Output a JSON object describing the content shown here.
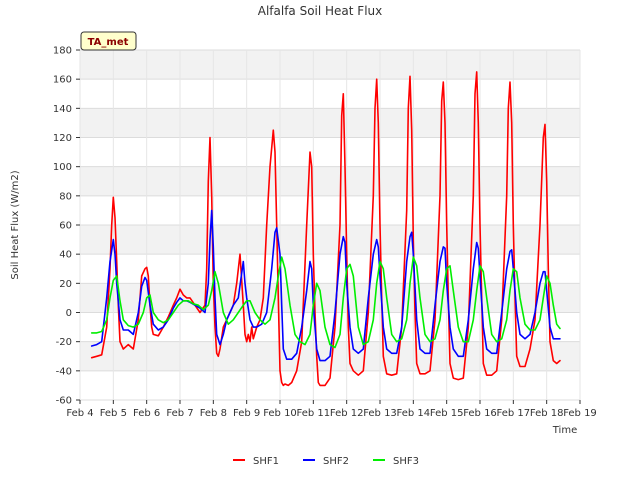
{
  "chart_data": {
    "type": "line",
    "title": "Alfalfa Soil Heat Flux",
    "xlabel": "Time",
    "ylabel": "Soil Heat Flux (W/m2)",
    "site_label": "TA_met",
    "xlim": [
      4,
      19
    ],
    "ylim": [
      -60,
      180
    ],
    "x_ticks": [
      4,
      5,
      6,
      7,
      8,
      9,
      10,
      11,
      12,
      13,
      14,
      15,
      16,
      17,
      18,
      19
    ],
    "x_tick_labels": [
      "Feb 4",
      "Feb 5",
      "Feb 6",
      "Feb 7",
      "Feb 8",
      "Feb 9",
      "Feb 10",
      "Feb 11",
      "Feb 12",
      "Feb 13",
      "Feb 14",
      "Feb 15",
      "Feb 16",
      "Feb 17",
      "Feb 18",
      "Feb 19"
    ],
    "y_ticks": [
      -60,
      -40,
      -20,
      0,
      20,
      40,
      60,
      80,
      100,
      120,
      140,
      160,
      180
    ],
    "y_tick_labels": [
      "-60",
      "-40",
      "-20",
      "0",
      "20",
      "40",
      "60",
      "80",
      "100",
      "120",
      "140",
      "160",
      "180"
    ],
    "grid": true,
    "legend_position": "bottom",
    "series": [
      {
        "name": "SHF1",
        "color": "#ff0000",
        "x": [
          4.35,
          4.5,
          4.65,
          4.8,
          4.9,
          4.95,
          5.0,
          5.05,
          5.1,
          5.15,
          5.2,
          5.3,
          5.45,
          5.6,
          5.75,
          5.85,
          5.95,
          6.0,
          6.05,
          6.1,
          6.15,
          6.2,
          6.35,
          6.5,
          6.65,
          6.8,
          6.9,
          7.0,
          7.1,
          7.2,
          7.3,
          7.45,
          7.6,
          7.75,
          7.8,
          7.85,
          7.9,
          7.95,
          8.0,
          8.05,
          8.1,
          8.15,
          8.2,
          8.3,
          8.4,
          8.5,
          8.6,
          8.7,
          8.8,
          8.9,
          8.95,
          9.0,
          9.05,
          9.1,
          9.15,
          9.2,
          9.3,
          9.4,
          9.5,
          9.6,
          9.7,
          9.8,
          9.85,
          9.9,
          9.95,
          10.0,
          10.05,
          10.1,
          10.15,
          10.25,
          10.35,
          10.5,
          10.65,
          10.8,
          10.9,
          10.95,
          11.0,
          11.05,
          11.1,
          11.15,
          11.2,
          11.35,
          11.5,
          11.65,
          11.8,
          11.85,
          11.9,
          11.95,
          12.0,
          12.05,
          12.1,
          12.2,
          12.35,
          12.5,
          12.65,
          12.8,
          12.85,
          12.9,
          12.95,
          13.0,
          13.05,
          13.1,
          13.2,
          13.35,
          13.5,
          13.65,
          13.8,
          13.85,
          13.9,
          13.95,
          14.0,
          14.05,
          14.1,
          14.2,
          14.35,
          14.5,
          14.65,
          14.8,
          14.85,
          14.9,
          14.95,
          15.0,
          15.05,
          15.1,
          15.2,
          15.35,
          15.5,
          15.65,
          15.8,
          15.85,
          15.9,
          15.95,
          16.0,
          16.05,
          16.1,
          16.2,
          16.35,
          16.5,
          16.65,
          16.8,
          16.85,
          16.9,
          16.95,
          17.0,
          17.05,
          17.1,
          17.2,
          17.35,
          17.5,
          17.65,
          17.8,
          17.9,
          17.95,
          18.0,
          18.05,
          18.1,
          18.2,
          18.3,
          18.4
        ],
        "y": [
          -31,
          -30,
          -29,
          -10,
          30,
          60,
          79,
          65,
          35,
          5,
          -20,
          -25,
          -22,
          -25,
          -5,
          25,
          30,
          31,
          25,
          5,
          -10,
          -15,
          -16,
          -10,
          -3,
          5,
          10,
          16,
          12,
          10,
          10,
          5,
          0,
          5,
          30,
          90,
          120,
          80,
          20,
          -10,
          -28,
          -30,
          -25,
          -10,
          -5,
          0,
          5,
          20,
          40,
          5,
          -15,
          -20,
          -15,
          -20,
          -10,
          -18,
          -10,
          -5,
          10,
          60,
          100,
          125,
          110,
          60,
          10,
          -40,
          -48,
          -50,
          -49,
          -50,
          -48,
          -40,
          -20,
          60,
          110,
          100,
          40,
          0,
          -30,
          -48,
          -50,
          -50,
          -45,
          -10,
          60,
          135,
          150,
          100,
          40,
          -10,
          -35,
          -40,
          -43,
          -40,
          0,
          80,
          140,
          160,
          130,
          60,
          10,
          -30,
          -42,
          -43,
          -42,
          -10,
          70,
          140,
          162,
          125,
          50,
          0,
          -35,
          -42,
          -42,
          -40,
          -5,
          80,
          145,
          158,
          130,
          60,
          10,
          -35,
          -45,
          -46,
          -45,
          -10,
          80,
          150,
          165,
          130,
          60,
          10,
          -35,
          -43,
          -43,
          -40,
          -5,
          80,
          140,
          158,
          130,
          60,
          10,
          -30,
          -37,
          -37,
          -25,
          -5,
          60,
          120,
          129,
          90,
          30,
          -20,
          -33,
          -35,
          -33
        ]
      },
      {
        "name": "SHF2",
        "color": "#0000ff",
        "x": [
          4.35,
          4.5,
          4.65,
          4.8,
          4.9,
          5.0,
          5.05,
          5.1,
          5.2,
          5.3,
          5.45,
          5.6,
          5.75,
          5.85,
          5.95,
          6.0,
          6.1,
          6.2,
          6.35,
          6.5,
          6.65,
          6.8,
          6.9,
          7.0,
          7.1,
          7.2,
          7.3,
          7.45,
          7.6,
          7.75,
          7.85,
          7.9,
          7.95,
          8.0,
          8.05,
          8.1,
          8.2,
          8.3,
          8.4,
          8.5,
          8.6,
          8.75,
          8.9,
          8.95,
          9.0,
          9.1,
          9.2,
          9.3,
          9.45,
          9.6,
          9.75,
          9.85,
          9.9,
          10.0,
          10.05,
          10.1,
          10.2,
          10.35,
          10.5,
          10.65,
          10.8,
          10.9,
          10.95,
          11.0,
          11.1,
          11.2,
          11.35,
          11.5,
          11.65,
          11.8,
          11.9,
          11.95,
          12.0,
          12.1,
          12.2,
          12.35,
          12.5,
          12.65,
          12.8,
          12.9,
          12.95,
          13.0,
          13.1,
          13.2,
          13.35,
          13.5,
          13.65,
          13.8,
          13.9,
          13.95,
          14.0,
          14.1,
          14.2,
          14.35,
          14.5,
          14.65,
          14.8,
          14.9,
          14.95,
          15.0,
          15.1,
          15.2,
          15.35,
          15.5,
          15.65,
          15.8,
          15.9,
          15.95,
          16.0,
          16.1,
          16.2,
          16.35,
          16.5,
          16.65,
          16.8,
          16.9,
          16.95,
          17.0,
          17.1,
          17.2,
          17.35,
          17.5,
          17.65,
          17.8,
          17.9,
          17.95,
          18.0,
          18.1,
          18.2,
          18.3,
          18.4
        ],
        "y": [
          -23,
          -22,
          -20,
          10,
          35,
          50,
          40,
          20,
          -5,
          -12,
          -12,
          -15,
          0,
          18,
          24,
          22,
          5,
          -8,
          -12,
          -10,
          -5,
          3,
          7,
          10,
          8,
          8,
          7,
          5,
          3,
          0,
          20,
          50,
          70,
          45,
          10,
          -15,
          -22,
          -15,
          -5,
          0,
          5,
          10,
          35,
          20,
          10,
          -5,
          -10,
          -10,
          -8,
          0,
          30,
          55,
          58,
          40,
          5,
          -25,
          -32,
          -32,
          -28,
          -10,
          15,
          35,
          30,
          5,
          -25,
          -33,
          -33,
          -30,
          0,
          40,
          52,
          48,
          20,
          -10,
          -25,
          -28,
          -25,
          10,
          40,
          50,
          45,
          25,
          -10,
          -25,
          -28,
          -28,
          -10,
          35,
          52,
          55,
          40,
          -5,
          -25,
          -28,
          -28,
          5,
          35,
          45,
          44,
          20,
          -10,
          -25,
          -30,
          -30,
          -5,
          30,
          48,
          44,
          25,
          -10,
          -25,
          -28,
          -28,
          0,
          30,
          42,
          43,
          30,
          0,
          -15,
          -18,
          -15,
          0,
          20,
          28,
          28,
          15,
          -10,
          -18,
          -18,
          -18
        ]
      },
      {
        "name": "SHF3",
        "color": "#00ee00",
        "x": [
          4.35,
          4.5,
          4.65,
          4.8,
          4.9,
          5.0,
          5.1,
          5.2,
          5.3,
          5.45,
          5.6,
          5.75,
          5.9,
          6.0,
          6.1,
          6.2,
          6.35,
          6.5,
          6.65,
          6.8,
          6.95,
          7.1,
          7.25,
          7.4,
          7.55,
          7.7,
          7.85,
          7.95,
          8.05,
          8.15,
          8.3,
          8.45,
          8.6,
          8.75,
          8.9,
          9.0,
          9.1,
          9.25,
          9.4,
          9.55,
          9.7,
          9.85,
          9.95,
          10.05,
          10.15,
          10.3,
          10.45,
          10.6,
          10.75,
          10.9,
          11.0,
          11.1,
          11.2,
          11.35,
          11.5,
          11.65,
          11.8,
          11.9,
          12.0,
          12.1,
          12.2,
          12.35,
          12.5,
          12.65,
          12.8,
          12.9,
          13.0,
          13.1,
          13.2,
          13.35,
          13.5,
          13.65,
          13.8,
          13.9,
          14.0,
          14.1,
          14.2,
          14.35,
          14.5,
          14.65,
          14.8,
          14.9,
          15.0,
          15.1,
          15.2,
          15.35,
          15.5,
          15.65,
          15.8,
          15.9,
          16.0,
          16.1,
          16.2,
          16.35,
          16.5,
          16.65,
          16.8,
          16.9,
          17.0,
          17.1,
          17.2,
          17.35,
          17.5,
          17.65,
          17.8,
          17.9,
          18.0,
          18.1,
          18.2,
          18.3,
          18.4
        ],
        "y": [
          -14,
          -14,
          -13,
          -5,
          10,
          22,
          25,
          8,
          -5,
          -9,
          -10,
          -8,
          0,
          10,
          12,
          0,
          -5,
          -7,
          -5,
          0,
          5,
          8,
          8,
          6,
          5,
          2,
          5,
          15,
          28,
          20,
          0,
          -8,
          -5,
          0,
          5,
          8,
          8,
          0,
          -5,
          -8,
          -5,
          10,
          25,
          38,
          30,
          5,
          -15,
          -20,
          -22,
          -15,
          5,
          20,
          15,
          -10,
          -22,
          -24,
          -15,
          10,
          30,
          33,
          25,
          -10,
          -22,
          -20,
          -5,
          20,
          35,
          30,
          10,
          -15,
          -20,
          -18,
          -5,
          20,
          38,
          32,
          10,
          -15,
          -20,
          -18,
          -5,
          15,
          30,
          32,
          15,
          -10,
          -20,
          -20,
          -5,
          15,
          32,
          28,
          10,
          -15,
          -20,
          -18,
          -5,
          15,
          30,
          28,
          10,
          -8,
          -12,
          -12,
          -5,
          10,
          25,
          20,
          5,
          -8,
          -11
        ]
      }
    ]
  }
}
